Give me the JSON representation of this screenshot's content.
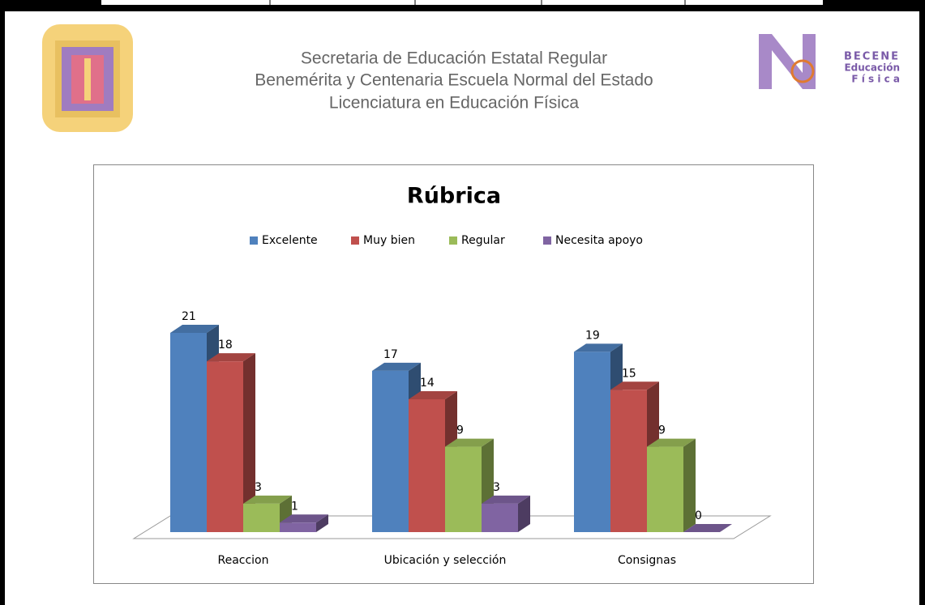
{
  "header": {
    "lines": [
      "Secretaria de Educación Estatal Regular",
      "Benemérita y Centenaria Escuela Normal del Estado",
      "Licenciatura en Educación Física"
    ],
    "logo_text": [
      "BECENE",
      "Educación",
      "F í s i c a"
    ]
  },
  "chart_data": {
    "type": "bar3d",
    "title": "Rúbrica",
    "categories": [
      "Reaccion",
      "Ubicación y selección",
      "Consignas"
    ],
    "series": [
      {
        "name": "Excelente",
        "color": "#4f81bd",
        "values": [
          21,
          17,
          19
        ]
      },
      {
        "name": "Muy bien",
        "color": "#c0504d",
        "values": [
          18,
          14,
          15
        ]
      },
      {
        "name": "Regular",
        "color": "#9bbb59",
        "values": [
          3,
          9,
          9
        ]
      },
      {
        "name": "Necesita apoyo",
        "color": "#8064a2",
        "values": [
          1,
          3,
          0
        ]
      }
    ],
    "legend": "top"
  }
}
